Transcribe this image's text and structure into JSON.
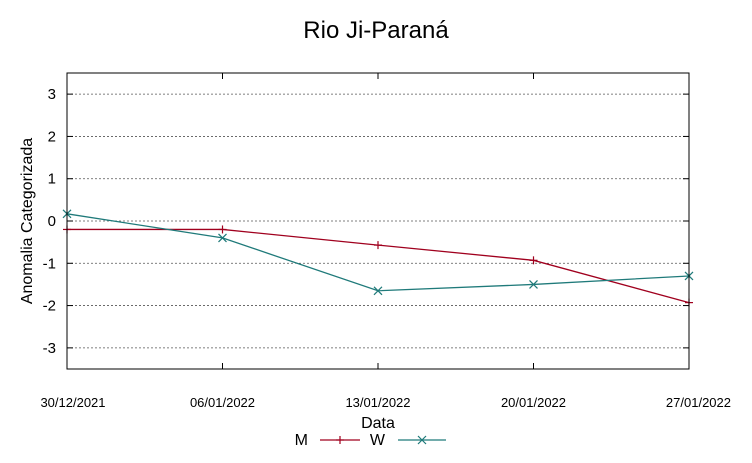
{
  "chart_data": {
    "type": "line",
    "title": "Rio Ji-Paraná",
    "xlabel": "Data",
    "ylabel": "Anomalia Categorizada",
    "x": [
      "30/12/2021",
      "06/01/2022",
      "13/01/2022",
      "20/01/2022",
      "27/01/2022"
    ],
    "ylim": [
      -3.5,
      3.5
    ],
    "yticks": [
      3,
      2,
      1,
      0,
      -1,
      -2,
      -3
    ],
    "grid": "horizontal dotted",
    "legend_position": "bottom-center",
    "series": [
      {
        "name": "M",
        "color": "#a0001e",
        "marker": "plus",
        "values": [
          -0.2,
          -0.2,
          -0.57,
          -0.93,
          -1.93
        ]
      },
      {
        "name": "W",
        "color": "#1f7a7a",
        "marker": "x",
        "values": [
          0.17,
          -0.4,
          -1.65,
          -1.5,
          -1.3
        ]
      }
    ]
  }
}
